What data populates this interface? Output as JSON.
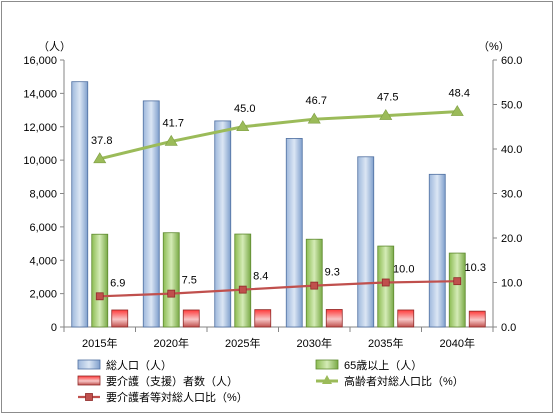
{
  "chart_data": {
    "type": "bar",
    "categories": [
      "2015年",
      "2020年",
      "2025年",
      "2030年",
      "2035年",
      "2040年"
    ],
    "left_axis": {
      "unit": "（人）",
      "ylim": [
        0,
        16000
      ],
      "ticks": [
        "0",
        "2,000",
        "4,000",
        "6,000",
        "8,000",
        "10,000",
        "12,000",
        "14,000",
        "16,000"
      ]
    },
    "right_axis": {
      "unit": "（%）",
      "ylim": [
        0,
        60
      ],
      "ticks": [
        "0.0",
        "10.0",
        "20.0",
        "30.0",
        "40.0",
        "50.0",
        "60.0"
      ]
    },
    "series": [
      {
        "name": "総人口（人）",
        "kind": "bar",
        "axis": "left",
        "color": "#4f81bd",
        "values": [
          14700,
          13550,
          12350,
          11300,
          10200,
          9150
        ]
      },
      {
        "name": "65歳以上（人）",
        "kind": "bar",
        "axis": "left",
        "color": "#9bbb59",
        "values": [
          5560,
          5650,
          5570,
          5260,
          4850,
          4430
        ]
      },
      {
        "name": "要介護（支援）者数（人）",
        "kind": "bar",
        "axis": "left",
        "color": "#c0504d",
        "values": [
          1020,
          1020,
          1040,
          1050,
          1020,
          950
        ]
      },
      {
        "name": "高齢者対総人口比（%）",
        "kind": "line",
        "axis": "right",
        "color": "#9bbb59",
        "marker": "triangle",
        "values": [
          37.8,
          41.7,
          45.0,
          46.7,
          47.5,
          48.4
        ],
        "labels": [
          "37.8",
          "41.7",
          "45.0",
          "46.7",
          "47.5",
          "48.4"
        ]
      },
      {
        "name": "要介護者等対総人口比（%）",
        "kind": "line",
        "axis": "right",
        "color": "#c0504d",
        "marker": "square",
        "values": [
          6.9,
          7.5,
          8.4,
          9.3,
          10.0,
          10.3
        ],
        "labels": [
          "6.9",
          "7.5",
          "8.4",
          "9.3",
          "10.0",
          "10.3"
        ]
      }
    ],
    "grid": false,
    "legend_position": "bottom"
  }
}
